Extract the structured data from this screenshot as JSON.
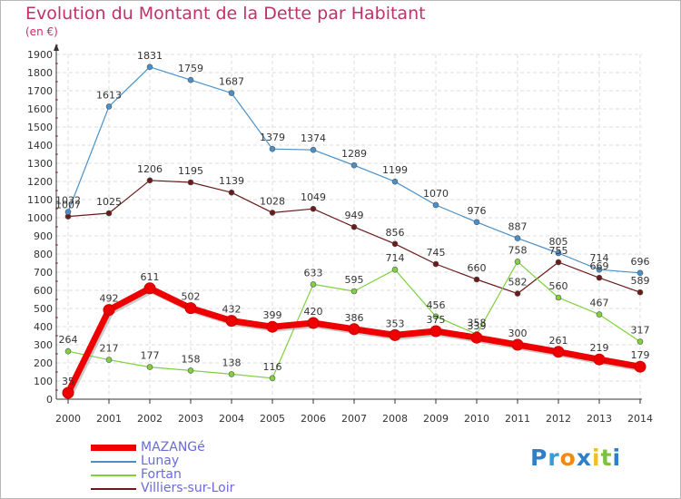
{
  "chart_data": {
    "type": "line",
    "title": "Evolution du Montant de la Dette par Habitant",
    "subtitle": "(en €)",
    "categories": [
      "2000",
      "2001",
      "2002",
      "2003",
      "2004",
      "2005",
      "2006",
      "2007",
      "2008",
      "2009",
      "2010",
      "2011",
      "2012",
      "2013",
      "2014"
    ],
    "y_ticks": [
      "0",
      "100",
      "200",
      "300",
      "400",
      "500",
      "600",
      "700",
      "800",
      "900",
      "1000",
      "1100",
      "1200",
      "1300",
      "1400",
      "1500",
      "1600",
      "1700",
      "1800",
      "1900"
    ],
    "ylim": [
      0,
      1900
    ],
    "grid": true,
    "legend_position": "bottom-left",
    "series": [
      {
        "name": "MAZANGé",
        "color": "#ee0000",
        "line_width": 7,
        "marker_radius": 6,
        "values": [
          35,
          492,
          611,
          502,
          432,
          399,
          420,
          386,
          353,
          375,
          339,
          300,
          261,
          219,
          179
        ],
        "labels": [
          "35",
          "492",
          "611",
          "502",
          "432",
          "399",
          "420",
          "386",
          "353",
          "375",
          "339",
          "300",
          "261",
          "219",
          "179"
        ]
      },
      {
        "name": "Lunay",
        "color": "#4a90c8",
        "line_width": 1.2,
        "marker_radius": 3,
        "values": [
          1032,
          1613,
          1831,
          1759,
          1687,
          1379,
          1374,
          1289,
          1199,
          1070,
          976,
          887,
          805,
          714,
          696
        ],
        "labels": [
          "1032",
          "1613",
          "1831",
          "1759",
          "1687",
          "1379",
          "1374",
          "1289",
          "1199",
          "1070",
          "976",
          "887",
          "805",
          "714",
          "696"
        ]
      },
      {
        "name": "Fortan",
        "color": "#80d040",
        "line_width": 1.2,
        "marker_radius": 3,
        "values": [
          264,
          217,
          177,
          158,
          138,
          116,
          633,
          595,
          714,
          456,
          358,
          758,
          560,
          467,
          317
        ],
        "labels": [
          "264",
          "217",
          "177",
          "158",
          "138",
          "116",
          "633",
          "595",
          "714",
          "456",
          "358",
          "758",
          "560",
          "467",
          "317"
        ]
      },
      {
        "name": "Villiers-sur-Loir",
        "color": "#6a1a1a",
        "line_width": 1.2,
        "marker_radius": 3,
        "values": [
          1007,
          1025,
          1206,
          1195,
          1139,
          1028,
          1049,
          949,
          856,
          745,
          660,
          582,
          755,
          669,
          589
        ],
        "labels": [
          "1007",
          "1025",
          "1206",
          "1195",
          "1139",
          "1028",
          "1049",
          "949",
          "856",
          "745",
          "660",
          "582",
          "755",
          "669",
          "589"
        ]
      }
    ]
  },
  "logo": {
    "letters": [
      "P",
      "r",
      "o",
      "x",
      "i",
      "t",
      "i"
    ],
    "colors": [
      "#2e7fc8",
      "#3a9ad8",
      "#f08a10",
      "#2e7fc8",
      "#f0c020",
      "#7cc242",
      "#2e7fc8"
    ]
  }
}
